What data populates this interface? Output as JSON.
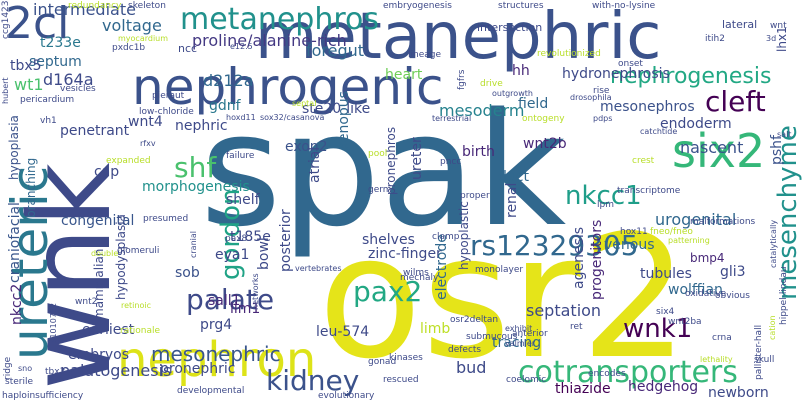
{
  "words": [
    {
      "id": "spak",
      "text": "spak",
      "color": "#31688e"
    },
    {
      "id": "osr2",
      "text": "osr2",
      "color": "#e5e419"
    },
    {
      "id": "wnk",
      "text": "wnk",
      "color": "#3e4a89"
    },
    {
      "id": "metanephric",
      "text": "metanephric",
      "color": "#3b528b"
    },
    {
      "id": "nephrogenic",
      "text": "nephrogenic",
      "color": "#3b528b"
    },
    {
      "id": "ureteric",
      "text": "ureteric",
      "color": "#2a788e"
    },
    {
      "id": "nephron",
      "text": "nephron",
      "color": "#dde318"
    },
    {
      "id": "six2",
      "text": "six2",
      "color": "#35b779"
    },
    {
      "id": "2cl",
      "text": "2cl",
      "color": "#3b528b"
    },
    {
      "id": "metanephros",
      "text": "metanephros",
      "color": "#21918c"
    },
    {
      "id": "nephrogenesis",
      "text": "nephrogenesis",
      "color": "#22a884"
    },
    {
      "id": "cleft",
      "text": "cleft",
      "color": "#440154"
    },
    {
      "id": "cotransporters",
      "text": "cotransporters",
      "color": "#35b779"
    },
    {
      "id": "rs12329305",
      "text": "rs12329305",
      "color": "#31688e"
    },
    {
      "id": "kidney",
      "text": "kidney",
      "color": "#3b528b"
    },
    {
      "id": "mesenchyme",
      "text": "mesenchyme",
      "color": "#21918c"
    },
    {
      "id": "nkcc1",
      "text": "nkcc1",
      "color": "#1f9e89"
    },
    {
      "id": "pax2",
      "text": "pax2",
      "color": "#22a884"
    },
    {
      "id": "wnk1",
      "text": "wnk1",
      "color": "#440154"
    },
    {
      "id": "palate",
      "text": "palate",
      "color": "#3e4a89"
    },
    {
      "id": "gordon",
      "text": "gordon",
      "color": "#20a386"
    },
    {
      "id": "shf",
      "text": "shf",
      "color": "#4ac16d"
    },
    {
      "id": "mesonephric",
      "text": "mesonephric",
      "color": "#39568c"
    },
    {
      "id": "proline",
      "text": "proline/alanine-rich",
      "color": "#443983"
    },
    {
      "id": "intermediate",
      "text": "intermediate",
      "color": "#3b528b"
    },
    {
      "id": "voltage",
      "text": "voltage",
      "color": "#31688e"
    },
    {
      "id": "d212a",
      "text": "d212a",
      "color": "#31688e"
    },
    {
      "id": "d164a",
      "text": "d164a",
      "color": "#3e4a89"
    },
    {
      "id": "t233e",
      "text": "t233e",
      "color": "#2a788e"
    },
    {
      "id": "septum",
      "text": "septum",
      "color": "#31688e"
    },
    {
      "id": "tbx5",
      "text": "tbx5",
      "color": "#3e4a89"
    },
    {
      "id": "wt1",
      "text": "wt1",
      "color": "#4ac16d"
    },
    {
      "id": "foregut",
      "text": "foregut",
      "color": "#31688e"
    },
    {
      "id": "hydronephrosis",
      "text": "hydronephrosis",
      "color": "#3e4a89"
    },
    {
      "id": "hh",
      "text": "hh",
      "color": "#482878"
    },
    {
      "id": "mesoderm",
      "text": "mesoderm",
      "color": "#26828e"
    },
    {
      "id": "field",
      "text": "field",
      "color": "#31688e"
    },
    {
      "id": "mesonephros",
      "text": "mesonephros",
      "color": "#3b528b"
    },
    {
      "id": "ste20",
      "text": "ste20-like",
      "color": "#3e4a89"
    },
    {
      "id": "gdnf",
      "text": "gdnf",
      "color": "#2a788e"
    },
    {
      "id": "wnt4",
      "text": "wnt4",
      "color": "#3e4a89"
    },
    {
      "id": "nephric",
      "text": "nephric",
      "color": "#3e4a89"
    },
    {
      "id": "penetrant",
      "text": "penetrant",
      "color": "#3e4a89"
    },
    {
      "id": "xenopus",
      "text": "xenopus",
      "color": "#31688e"
    },
    {
      "id": "exon2",
      "text": "exon2",
      "color": "#3b528b"
    },
    {
      "id": "atrial",
      "text": "atrial",
      "color": "#3e4a89"
    },
    {
      "id": "birth",
      "text": "birth",
      "color": "#482878"
    },
    {
      "id": "wnt2b",
      "text": "wnt2b",
      "color": "#482878"
    },
    {
      "id": "endoderm",
      "text": "endoderm",
      "color": "#3e4a89"
    },
    {
      "id": "nascent",
      "text": "nascent",
      "color": "#3b528b"
    },
    {
      "id": "pshf",
      "text": "pshf",
      "color": "#3b528b"
    },
    {
      "id": "cap",
      "text": "cap",
      "color": "#3e4a89"
    },
    {
      "id": "morphogenesis",
      "text": "morphogenesis",
      "color": "#21918c"
    },
    {
      "id": "shelf",
      "text": "shelf",
      "color": "#3e4a89"
    },
    {
      "id": "duct",
      "text": "duct",
      "color": "#31688e"
    },
    {
      "id": "renal",
      "text": "renal",
      "color": "#3e4a89"
    },
    {
      "id": "urogenital",
      "text": "urogenital",
      "color": "#31688e"
    },
    {
      "id": "t185e",
      "text": "t185e",
      "color": "#3e4a89"
    },
    {
      "id": "congenital",
      "text": "congenital",
      "color": "#39568c"
    },
    {
      "id": "craniofacial",
      "text": "craniofacial",
      "color": "#39568c"
    },
    {
      "id": "hypoplasia",
      "text": "hypoplasia",
      "color": "#3b528b"
    },
    {
      "id": "branching",
      "text": "branching",
      "color": "#31688e"
    },
    {
      "id": "nkcc2",
      "text": "nkcc2",
      "color": "#482878"
    },
    {
      "id": "eya1",
      "text": "eya1",
      "color": "#3e4a89"
    },
    {
      "id": "shelves",
      "text": "shelves",
      "color": "#3e4a89"
    },
    {
      "id": "zinc",
      "text": "zinc-finger",
      "color": "#3e4a89"
    },
    {
      "id": "venous",
      "text": "venous",
      "color": "#31688e"
    },
    {
      "id": "gli3",
      "text": "gli3",
      "color": "#3e4a89"
    },
    {
      "id": "sob",
      "text": "sob",
      "color": "#3b528b"
    },
    {
      "id": "sall1",
      "text": "sall1",
      "color": "#482878"
    },
    {
      "id": "lim1",
      "text": "lim1",
      "color": "#482878"
    },
    {
      "id": "bowl",
      "text": "bowl",
      "color": "#3e4a89"
    },
    {
      "id": "posterior",
      "text": "posterior",
      "color": "#3e4a89"
    },
    {
      "id": "tubules",
      "text": "tubules",
      "color": "#3e4a89"
    },
    {
      "id": "wolffian",
      "text": "wolffian",
      "color": "#31688e"
    },
    {
      "id": "prg4",
      "text": "prg4",
      "color": "#3e4a89"
    },
    {
      "id": "leu574",
      "text": "leu-574",
      "color": "#3e4a89"
    },
    {
      "id": "mammalian",
      "text": "mammalian",
      "color": "#3e4a89"
    },
    {
      "id": "hypodysplasia",
      "text": "hypodysplasia",
      "color": "#3e4a89"
    },
    {
      "id": "earliest",
      "text": "earliest",
      "color": "#3e4a89"
    },
    {
      "id": "embryos",
      "text": "embryos",
      "color": "#3e4a89"
    },
    {
      "id": "palatogenesis",
      "text": "palatogenesis",
      "color": "#3e4a89"
    },
    {
      "id": "pronephric",
      "text": "pronephric",
      "color": "#3e4a89"
    },
    {
      "id": "electrode",
      "text": "electrode",
      "color": "#31688e"
    },
    {
      "id": "agenesis",
      "text": "agenesis",
      "color": "#3e4a89"
    },
    {
      "id": "progenitors",
      "text": "progenitors",
      "color": "#482878"
    },
    {
      "id": "septation",
      "text": "septation",
      "color": "#3e4a89"
    },
    {
      "id": "tracing",
      "text": "tracing",
      "color": "#31688e"
    },
    {
      "id": "bud",
      "text": "bud",
      "color": "#3e4a89"
    },
    {
      "id": "thiazide",
      "text": "thiazide",
      "color": "#440154"
    },
    {
      "id": "hedgehog",
      "text": "hedgehog",
      "color": "#482878"
    },
    {
      "id": "newborn",
      "text": "newborn",
      "color": "#3e4a89"
    },
    {
      "id": "limb",
      "text": "limb",
      "color": "#bddf26"
    },
    {
      "id": "bmp4",
      "text": "bmp4",
      "color": "#482878"
    },
    {
      "id": "lhx1",
      "text": "lhx1",
      "color": "#3e4a89"
    },
    {
      "id": "hypoplastic",
      "text": "hypoplastic",
      "color": "#3e4a89"
    },
    {
      "id": "ureter",
      "text": "ureter",
      "color": "#3e4a89"
    },
    {
      "id": "pronephros",
      "text": "pronephros",
      "color": "#3e4a89"
    },
    {
      "id": "heart",
      "text": "heart",
      "color": "#6ece58"
    },
    {
      "id": "ccg1423",
      "text": "ccg1423",
      "color": "#3e4a89"
    },
    {
      "id": "redundancy",
      "text": "redundancy",
      "color": "#b8de29"
    },
    {
      "id": "skeleton",
      "text": "skeleton",
      "color": "#3e4a89"
    },
    {
      "id": "embryogenesis",
      "text": "embryogenesis",
      "color": "#3e4a89"
    },
    {
      "id": "structures",
      "text": "structures",
      "color": "#3e4a89"
    },
    {
      "id": "with-no-lysine",
      "text": "with-no-lysine",
      "color": "#3e4a89"
    },
    {
      "id": "intersection",
      "text": "intersection",
      "color": "#3e4a89"
    },
    {
      "id": "lateral",
      "text": "lateral",
      "color": "#3e4a89"
    },
    {
      "id": "wnt",
      "text": "wnt",
      "color": "#3e4a89"
    },
    {
      "id": "itih2",
      "text": "itih2",
      "color": "#3e4a89"
    },
    {
      "id": "3d",
      "text": "3d",
      "color": "#3e4a89"
    },
    {
      "id": "ncc",
      "text": "ncc",
      "color": "#3e4a89"
    },
    {
      "id": "e125",
      "text": "e12.5",
      "color": "#3e4a89"
    },
    {
      "id": "myocardium",
      "text": "myocardium",
      "color": "#b8de29"
    },
    {
      "id": "pxdc1b",
      "text": "pxdc1b",
      "color": "#3e4a89"
    },
    {
      "id": "vesicles",
      "text": "vesicles",
      "color": "#3e4a89"
    },
    {
      "id": "pieraut",
      "text": "pieraut",
      "color": "#3e4a89"
    },
    {
      "id": "lineage",
      "text": "lineage",
      "color": "#3e4a89"
    },
    {
      "id": "revolutionized",
      "text": "revolutionized",
      "color": "#b8de29"
    },
    {
      "id": "onset",
      "text": "onset",
      "color": "#3e4a89"
    },
    {
      "id": "drive",
      "text": "drive",
      "color": "#b8de29"
    },
    {
      "id": "rise",
      "text": "rise",
      "color": "#3e4a89"
    },
    {
      "id": "fgfrs",
      "text": "fgfrs",
      "color": "#3e4a89"
    },
    {
      "id": "outgrowth",
      "text": "outgrowth",
      "color": "#3e4a89"
    },
    {
      "id": "drosophila",
      "text": "drosophila",
      "color": "#3e4a89"
    },
    {
      "id": "pericardium",
      "text": "pericardium",
      "color": "#3e4a89"
    },
    {
      "id": "hubert",
      "text": "hubert",
      "color": "#3e4a89"
    },
    {
      "id": "vh1",
      "text": "vh1",
      "color": "#3e4a89"
    },
    {
      "id": "low-chloride",
      "text": "low-chloride",
      "color": "#3e4a89"
    },
    {
      "id": "septal",
      "text": "septal",
      "color": "#b8de29"
    },
    {
      "id": "sox32",
      "text": "sox32/casanova",
      "color": "#3e4a89"
    },
    {
      "id": "hoxd11",
      "text": "hoxd11",
      "color": "#3e4a89"
    },
    {
      "id": "terrestrial",
      "text": "terrestrial",
      "color": "#3e4a89"
    },
    {
      "id": "pdps",
      "text": "pdps",
      "color": "#3e4a89"
    },
    {
      "id": "ontogeny",
      "text": "ontogeny",
      "color": "#b8de29"
    },
    {
      "id": "catchtide",
      "text": "catchtide",
      "color": "#3e4a89"
    },
    {
      "id": "rfxv",
      "text": "rfxv",
      "color": "#3e4a89"
    },
    {
      "id": "failure",
      "text": "failure",
      "color": "#3e4a89"
    },
    {
      "id": "pool",
      "text": "pool",
      "color": "#b8de29"
    },
    {
      "id": "pncc",
      "text": "pncc",
      "color": "#3e4a89"
    },
    {
      "id": "expanded",
      "text": "expanded",
      "color": "#b8de29"
    },
    {
      "id": "germ",
      "text": "germ",
      "color": "#3e4a89"
    },
    {
      "id": "crest",
      "text": "crest",
      "color": "#b8de29"
    },
    {
      "id": "proper",
      "text": "proper",
      "color": "#3e4a89"
    },
    {
      "id": "lpm",
      "text": "lpm",
      "color": "#3e4a89"
    },
    {
      "id": "transcriptome",
      "text": "transcriptome",
      "color": "#3e4a89"
    },
    {
      "id": "presumed",
      "text": "presumed",
      "color": "#3e4a89"
    },
    {
      "id": "hox11",
      "text": "hox11",
      "color": "#3e4a89"
    },
    {
      "id": "fneo",
      "text": "fneo/fneo",
      "color": "#b8de29"
    },
    {
      "id": "malformations",
      "text": "malformations",
      "color": "#3e4a89"
    },
    {
      "id": "clamp",
      "text": "clamp",
      "color": "#3e4a89"
    },
    {
      "id": "pax8",
      "text": "pax8",
      "color": "#3e4a89"
    },
    {
      "id": "patterning",
      "text": "patterning",
      "color": "#b8de29"
    },
    {
      "id": "glomeruli",
      "text": "glomeruli",
      "color": "#3e4a89"
    },
    {
      "id": "double",
      "text": "double",
      "color": "#b8de29"
    },
    {
      "id": "wilms",
      "text": "wilms",
      "color": "#3e4a89"
    },
    {
      "id": "mechaly",
      "text": "mechaly",
      "color": "#3e4a89"
    },
    {
      "id": "monolayer",
      "text": "monolayer",
      "color": "#3e4a89"
    },
    {
      "id": "oxidative",
      "text": "oxidative",
      "color": "#3e4a89"
    },
    {
      "id": "obvious",
      "text": "obvious",
      "color": "#3e4a89"
    },
    {
      "id": "six4",
      "text": "six4",
      "color": "#3e4a89"
    },
    {
      "id": "wnt2ba",
      "text": "wnt2ba",
      "color": "#3e4a89"
    },
    {
      "id": "ret",
      "text": "ret",
      "color": "#3e4a89"
    },
    {
      "id": "osr2deltan",
      "text": "osr2deltan",
      "color": "#3e4a89"
    },
    {
      "id": "submucous",
      "text": "submucous",
      "color": "#3e4a89"
    },
    {
      "id": "exhibit",
      "text": "exhibit",
      "color": "#3e4a89"
    },
    {
      "id": "anterior",
      "text": "anterior",
      "color": "#3e4a89"
    },
    {
      "id": "valmier",
      "text": "valmier",
      "color": "#3e4a89"
    },
    {
      "id": "defects",
      "text": "defects",
      "color": "#3e4a89"
    },
    {
      "id": "crna",
      "text": "crna",
      "color": "#3e4a89"
    },
    {
      "id": "kinases",
      "text": "kinases",
      "color": "#3e4a89"
    },
    {
      "id": "gonad",
      "text": "gonad",
      "color": "#3e4a89"
    },
    {
      "id": "wnt2",
      "text": "wnt2",
      "color": "#3e4a89"
    },
    {
      "id": "retinoic",
      "text": "retinoic",
      "color": "#b8de29"
    },
    {
      "id": "rationale",
      "text": "rationale",
      "color": "#b8de29"
    },
    {
      "id": "sterile",
      "text": "sterile",
      "color": "#3e4a89"
    },
    {
      "id": "tbx3",
      "text": "tbx3",
      "color": "#3e4a89"
    },
    {
      "id": "ridge",
      "text": "ridge",
      "color": "#3e4a89"
    },
    {
      "id": "sno",
      "text": "sno",
      "color": "#3e4a89"
    },
    {
      "id": "rs1010732",
      "text": "rs1010732",
      "color": "#3e4a89"
    },
    {
      "id": "haploinsufficiency",
      "text": "haploinsufficiency",
      "color": "#3e4a89"
    },
    {
      "id": "developmental",
      "text": "developmental",
      "color": "#3e4a89"
    },
    {
      "id": "evolutionary",
      "text": "evolutionary",
      "color": "#3e4a89"
    },
    {
      "id": "rescued",
      "text": "rescued",
      "color": "#3e4a89"
    },
    {
      "id": "coelomic",
      "text": "coelomic",
      "color": "#3e4a89"
    },
    {
      "id": "encodes",
      "text": "encodes",
      "color": "#3e4a89"
    },
    {
      "id": "pallister-hall",
      "text": "pallister-hall",
      "color": "#3e4a89"
    },
    {
      "id": "hippel-lindau",
      "text": "hippel-lindau",
      "color": "#3e4a89"
    },
    {
      "id": "lethality",
      "text": "lethality",
      "color": "#b8de29"
    },
    {
      "id": "skull",
      "text": "skull",
      "color": "#3e4a89"
    },
    {
      "id": "cation",
      "text": "cation",
      "color": "#b8de29"
    },
    {
      "id": "catalytically",
      "text": "catalytically",
      "color": "#3e4a89"
    },
    {
      "id": "salt",
      "text": "salt",
      "color": "#3e4a89"
    },
    {
      "id": "networks",
      "text": "networks",
      "color": "#3e4a89"
    },
    {
      "id": "vertebrates",
      "text": "vertebrates",
      "color": "#3e4a89"
    },
    {
      "id": "cranial",
      "text": "cranial",
      "color": "#3e4a89"
    }
  ]
}
